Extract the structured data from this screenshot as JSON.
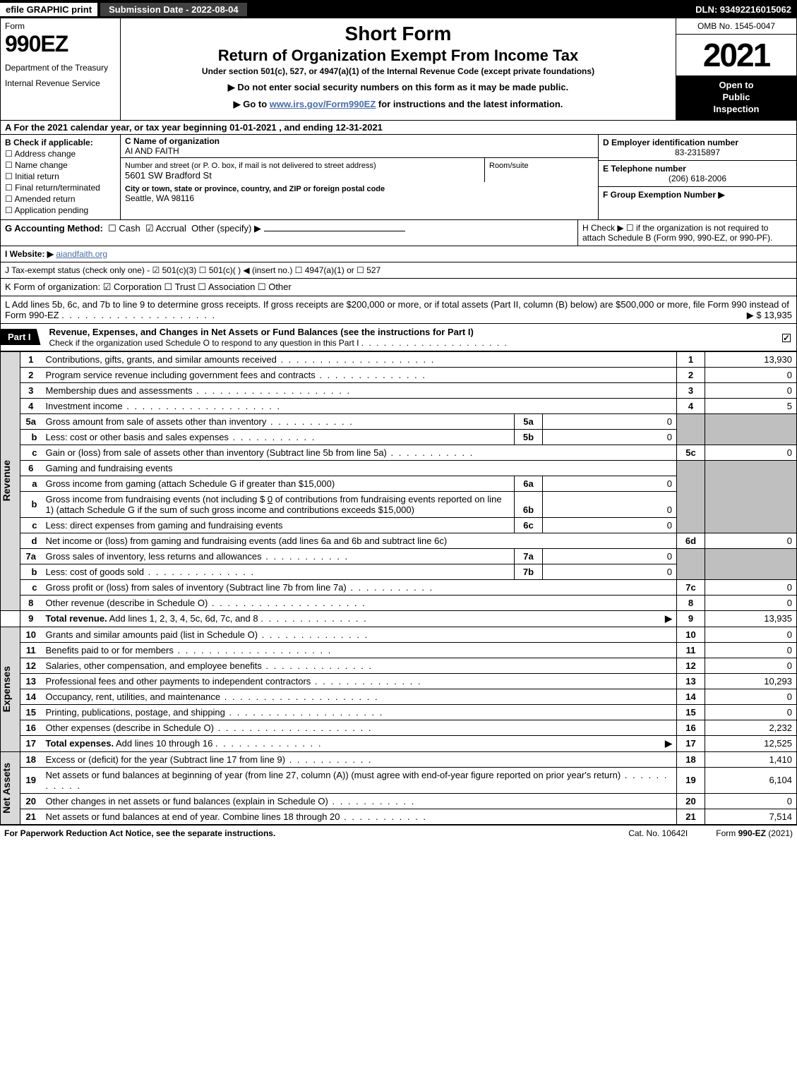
{
  "topbar": {
    "efile": "efile GRAPHIC print",
    "subdate_label": "Submission Date - 2022-08-04",
    "dln": "DLN: 93492216015062"
  },
  "header": {
    "form_label": "Form",
    "form_number": "990EZ",
    "dept1": "Department of the Treasury",
    "dept2": "Internal Revenue Service",
    "title1": "Short Form",
    "title2": "Return of Organization Exempt From Income Tax",
    "subtitle": "Under section 501(c), 527, or 4947(a)(1) of the Internal Revenue Code (except private foundations)",
    "instruction1": "▶ Do not enter social security numbers on this form as it may be made public.",
    "instruction2_pre": "▶ Go to ",
    "instruction2_link": "www.irs.gov/Form990EZ",
    "instruction2_post": " for instructions and the latest information.",
    "omb": "OMB No. 1545-0047",
    "year": "2021",
    "open1": "Open to",
    "open2": "Public",
    "open3": "Inspection"
  },
  "rowA": "A  For the 2021 calendar year, or tax year beginning 01-01-2021  , and ending 12-31-2021",
  "colB": {
    "header": "B  Check if applicable:",
    "items": [
      "Address change",
      "Name change",
      "Initial return",
      "Final return/terminated",
      "Amended return",
      "Application pending"
    ]
  },
  "colC": {
    "name_label": "C Name of organization",
    "name": "AI AND FAITH",
    "street_label": "Number and street (or P. O. box, if mail is not delivered to street address)",
    "street": "5601 SW Bradford St",
    "room_label": "Room/suite",
    "city_label": "City or town, state or province, country, and ZIP or foreign postal code",
    "city": "Seattle, WA   98116"
  },
  "colDEF": {
    "d_label": "D Employer identification number",
    "d_val": "83-2315897",
    "e_label": "E Telephone number",
    "e_val": "(206) 618-2006",
    "f_label": "F Group Exemption Number   ▶"
  },
  "rowG": {
    "label": "G Accounting Method:",
    "cash": "Cash",
    "accrual": "Accrual",
    "other": "Other (specify) ▶"
  },
  "rowH": "H  Check ▶  ☐  if the organization is not required to attach Schedule B (Form 990, 990-EZ, or 990-PF).",
  "rowI": {
    "label": "I Website: ▶",
    "link": "aiandfaith.org"
  },
  "rowJ": "J Tax-exempt status (check only one) - ☑ 501(c)(3) ☐ 501(c)(  ) ◀ (insert no.) ☐ 4947(a)(1) or ☐ 527",
  "rowK": "K Form of organization:  ☑ Corporation  ☐ Trust  ☐ Association  ☐ Other",
  "rowL": {
    "text": "L Add lines 5b, 6c, and 7b to line 9 to determine gross receipts. If gross receipts are $200,000 or more, or if total assets (Part II, column (B) below) are $500,000 or more, file Form 990 instead of Form 990-EZ",
    "val": "▶ $ 13,935"
  },
  "part1": {
    "label": "Part I",
    "title": "Revenue, Expenses, and Changes in Net Assets or Fund Balances (see the instructions for Part I)",
    "subtitle": "Check if the organization used Schedule O to respond to any question in this Part I"
  },
  "sections": {
    "revenue": "Revenue",
    "expenses": "Expenses",
    "netassets": "Net Assets"
  },
  "lines": {
    "l1": {
      "desc": "Contributions, gifts, grants, and similar amounts received",
      "ref": "1",
      "amt": "13,930"
    },
    "l2": {
      "desc": "Program service revenue including government fees and contracts",
      "ref": "2",
      "amt": "0"
    },
    "l3": {
      "desc": "Membership dues and assessments",
      "ref": "3",
      "amt": "0"
    },
    "l4": {
      "desc": "Investment income",
      "ref": "4",
      "amt": "5"
    },
    "l5a": {
      "desc": "Gross amount from sale of assets other than inventory",
      "sub": "5a",
      "subval": "0"
    },
    "l5b": {
      "desc": "Less: cost or other basis and sales expenses",
      "sub": "5b",
      "subval": "0"
    },
    "l5c": {
      "desc": "Gain or (loss) from sale of assets other than inventory (Subtract line 5b from line 5a)",
      "ref": "5c",
      "amt": "0"
    },
    "l6": {
      "desc": "Gaming and fundraising events"
    },
    "l6a": {
      "desc": "Gross income from gaming (attach Schedule G if greater than $15,000)",
      "sub": "6a",
      "subval": "0"
    },
    "l6b": {
      "desc1": "Gross income from fundraising events (not including $",
      "desc1b": "0",
      "desc2": "of contributions from fundraising events reported on line 1) (attach Schedule G if the sum of such gross income and contributions exceeds $15,000)",
      "sub": "6b",
      "subval": "0"
    },
    "l6c": {
      "desc": "Less: direct expenses from gaming and fundraising events",
      "sub": "6c",
      "subval": "0"
    },
    "l6d": {
      "desc": "Net income or (loss) from gaming and fundraising events (add lines 6a and 6b and subtract line 6c)",
      "ref": "6d",
      "amt": "0"
    },
    "l7a": {
      "desc": "Gross sales of inventory, less returns and allowances",
      "sub": "7a",
      "subval": "0"
    },
    "l7b": {
      "desc": "Less: cost of goods sold",
      "sub": "7b",
      "subval": "0"
    },
    "l7c": {
      "desc": "Gross profit or (loss) from sales of inventory (Subtract line 7b from line 7a)",
      "ref": "7c",
      "amt": "0"
    },
    "l8": {
      "desc": "Other revenue (describe in Schedule O)",
      "ref": "8",
      "amt": "0"
    },
    "l9": {
      "desc": "Total revenue. Add lines 1, 2, 3, 4, 5c, 6d, 7c, and 8",
      "ref": "9",
      "amt": "13,935"
    },
    "l10": {
      "desc": "Grants and similar amounts paid (list in Schedule O)",
      "ref": "10",
      "amt": "0"
    },
    "l11": {
      "desc": "Benefits paid to or for members",
      "ref": "11",
      "amt": "0"
    },
    "l12": {
      "desc": "Salaries, other compensation, and employee benefits",
      "ref": "12",
      "amt": "0"
    },
    "l13": {
      "desc": "Professional fees and other payments to independent contractors",
      "ref": "13",
      "amt": "10,293"
    },
    "l14": {
      "desc": "Occupancy, rent, utilities, and maintenance",
      "ref": "14",
      "amt": "0"
    },
    "l15": {
      "desc": "Printing, publications, postage, and shipping",
      "ref": "15",
      "amt": "0"
    },
    "l16": {
      "desc": "Other expenses (describe in Schedule O)",
      "ref": "16",
      "amt": "2,232"
    },
    "l17": {
      "desc": "Total expenses. Add lines 10 through 16",
      "ref": "17",
      "amt": "12,525"
    },
    "l18": {
      "desc": "Excess or (deficit) for the year (Subtract line 17 from line 9)",
      "ref": "18",
      "amt": "1,410"
    },
    "l19": {
      "desc": "Net assets or fund balances at beginning of year (from line 27, column (A)) (must agree with end-of-year figure reported on prior year's return)",
      "ref": "19",
      "amt": "6,104"
    },
    "l20": {
      "desc": "Other changes in net assets or fund balances (explain in Schedule O)",
      "ref": "20",
      "amt": "0"
    },
    "l21": {
      "desc": "Net assets or fund balances at end of year. Combine lines 18 through 20",
      "ref": "21",
      "amt": "7,514"
    }
  },
  "footer": {
    "left": "For Paperwork Reduction Act Notice, see the separate instructions.",
    "mid": "Cat. No. 10642I",
    "right_pre": "Form ",
    "right_bold": "990-EZ",
    "right_post": " (2021)"
  }
}
